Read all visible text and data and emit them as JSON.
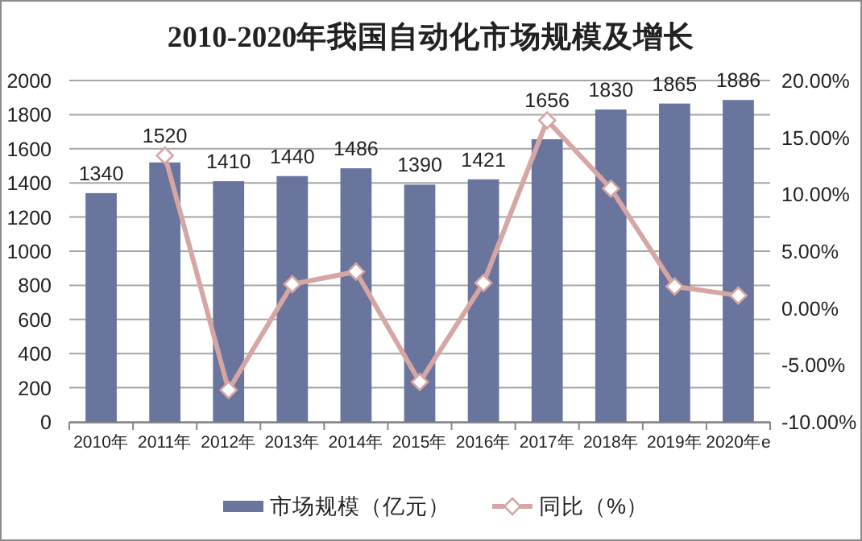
{
  "chart_data": {
    "type": "bar",
    "title": "2010-2020年我国自动化市场规模及增长",
    "categories": [
      "2010年",
      "2011年",
      "2012年",
      "2013年",
      "2014年",
      "2015年",
      "2016年",
      "2017年",
      "2018年",
      "2019年",
      "2020年e"
    ],
    "series": [
      {
        "name": "市场规模（亿元）",
        "color": "#69759c",
        "values": [
          1340,
          1520,
          1410,
          1440,
          1486,
          1390,
          1421,
          1656,
          1830,
          1865,
          1886
        ],
        "value_labels": [
          "1340",
          "1520",
          "1410",
          "1440",
          "1486",
          "1390",
          "1421",
          "1656",
          "1830",
          "1865",
          "1886"
        ]
      },
      {
        "name": "同比（%）",
        "type": "line",
        "axis": "y2",
        "color": "#d5a6a4",
        "marker": "diamond",
        "values": [
          null,
          13.4,
          -7.2,
          2.1,
          3.2,
          -6.5,
          2.2,
          16.5,
          10.5,
          1.9,
          1.1
        ]
      }
    ],
    "ylim": [
      0,
      2000
    ],
    "yticks": [
      0,
      200,
      400,
      600,
      800,
      1000,
      1200,
      1400,
      1600,
      1800,
      2000
    ],
    "y2lim": [
      -10,
      20
    ],
    "y2ticks": [
      {
        "value": -10,
        "label": "-10.00%"
      },
      {
        "value": -5,
        "label": "-5.00%"
      },
      {
        "value": 0,
        "label": "0.00%"
      },
      {
        "value": 5,
        "label": "5.00%"
      },
      {
        "value": 10,
        "label": "10.00%"
      },
      {
        "value": 15,
        "label": "15.00%"
      },
      {
        "value": 20,
        "label": "20.00%"
      }
    ],
    "grid": "y",
    "legend": "bottom"
  }
}
